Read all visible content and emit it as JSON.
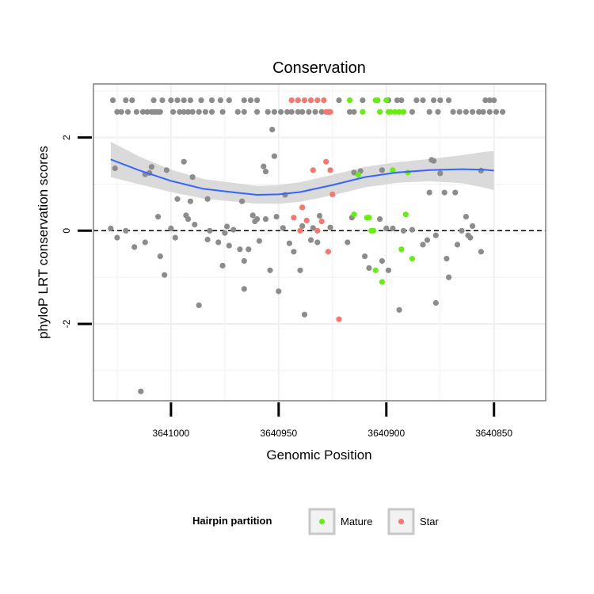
{
  "chart_data": {
    "type": "scatter",
    "title": "Conservation",
    "xlabel": "Genomic Position",
    "ylabel": "phyloP LRT conservation scores",
    "x_reversed": true,
    "xlim": [
      3641036,
      3640826
    ],
    "ylim": [
      -3.65,
      3.15
    ],
    "x_ticks": [
      3641000,
      3640950,
      3640900,
      3640850
    ],
    "x_tick_labels": [
      "3641000",
      "3640950",
      "3640900",
      "3640850"
    ],
    "y_ticks": [
      -2,
      0,
      2
    ],
    "y_tick_labels": [
      "-2",
      "0",
      "2"
    ],
    "grid": true,
    "reference_line": {
      "y": 0,
      "style": "dashed"
    },
    "colors": {
      "background": "#ffffff",
      "grid": "#f0f0f0",
      "other": "#8c8c8c",
      "mature": "#66ee11",
      "star": "#f8766d",
      "smooth_line": "#3366ff",
      "smooth_band": "#d3d3d3"
    },
    "legend": {
      "title": "Hairpin partition",
      "position": "bottom",
      "entries": [
        {
          "key": "mature",
          "label": "Mature"
        },
        {
          "key": "star",
          "label": "Star"
        }
      ]
    },
    "series": [
      {
        "key": "other",
        "points": [
          [
            3641027,
            2.8
          ],
          [
            3641021,
            2.8
          ],
          [
            3641018,
            2.8
          ],
          [
            3641008,
            2.8
          ],
          [
            3641004,
            2.8
          ],
          [
            3641000,
            2.8
          ],
          [
            3640997,
            2.8
          ],
          [
            3640994,
            2.8
          ],
          [
            3640991,
            2.8
          ],
          [
            3640986,
            2.8
          ],
          [
            3640981,
            2.8
          ],
          [
            3640977,
            2.8
          ],
          [
            3640973,
            2.8
          ],
          [
            3640966,
            2.8
          ],
          [
            3640963,
            2.8
          ],
          [
            3640960,
            2.8
          ],
          [
            3640922,
            2.8
          ],
          [
            3640911,
            2.8
          ],
          [
            3640899,
            2.8
          ],
          [
            3640895,
            2.8
          ],
          [
            3640893,
            2.8
          ],
          [
            3640886,
            2.8
          ],
          [
            3640883,
            2.8
          ],
          [
            3640878,
            2.8
          ],
          [
            3640875,
            2.8
          ],
          [
            3640871,
            2.8
          ],
          [
            3640854,
            2.8
          ],
          [
            3640852,
            2.8
          ],
          [
            3640850,
            2.8
          ],
          [
            3641025,
            2.55
          ],
          [
            3641023,
            2.55
          ],
          [
            3641020,
            2.55
          ],
          [
            3641016,
            2.55
          ],
          [
            3641013,
            2.55
          ],
          [
            3641011,
            2.55
          ],
          [
            3641009,
            2.55
          ],
          [
            3641008,
            2.55
          ],
          [
            3641007,
            2.55
          ],
          [
            3641006,
            2.55
          ],
          [
            3641005,
            2.55
          ],
          [
            3640999,
            2.55
          ],
          [
            3640996,
            2.55
          ],
          [
            3640994,
            2.55
          ],
          [
            3640992,
            2.55
          ],
          [
            3640990,
            2.55
          ],
          [
            3640987,
            2.55
          ],
          [
            3640984,
            2.55
          ],
          [
            3640981,
            2.55
          ],
          [
            3640976,
            2.55
          ],
          [
            3640969,
            2.55
          ],
          [
            3640966,
            2.55
          ],
          [
            3640960,
            2.55
          ],
          [
            3640955,
            2.55
          ],
          [
            3640952,
            2.55
          ],
          [
            3640949,
            2.55
          ],
          [
            3640946,
            2.55
          ],
          [
            3640944,
            2.55
          ],
          [
            3640941,
            2.55
          ],
          [
            3640939,
            2.55
          ],
          [
            3640936,
            2.55
          ],
          [
            3640933,
            2.55
          ],
          [
            3640930,
            2.55
          ],
          [
            3640927,
            2.55
          ],
          [
            3640917,
            2.55
          ],
          [
            3640915,
            2.55
          ],
          [
            3640888,
            2.55
          ],
          [
            3640880,
            2.55
          ],
          [
            3640876,
            2.55
          ],
          [
            3640869,
            2.55
          ],
          [
            3640866,
            2.55
          ],
          [
            3640863,
            2.55
          ],
          [
            3640860,
            2.55
          ],
          [
            3640857,
            2.55
          ],
          [
            3640855,
            2.55
          ],
          [
            3640852,
            2.55
          ],
          [
            3640849,
            2.55
          ],
          [
            3640846,
            2.55
          ],
          [
            3641026,
            1.34
          ],
          [
            3641012,
            1.21
          ],
          [
            3641010,
            1.24
          ],
          [
            3641009,
            1.37
          ],
          [
            3641002,
            1.3
          ],
          [
            3640997,
            0.68
          ],
          [
            3640994,
            1.48
          ],
          [
            3640990,
            1.15
          ],
          [
            3640991,
            0.63
          ],
          [
            3640983,
            0.68
          ],
          [
            3640967,
            0.63
          ],
          [
            3640956,
            1.27
          ],
          [
            3640953,
            2.17
          ],
          [
            3640952,
            1.6
          ],
          [
            3640957,
            1.38
          ],
          [
            3640947,
            0.77
          ],
          [
            3640939,
            0.1
          ],
          [
            3640931,
            0.32
          ],
          [
            3640915,
            1.25
          ],
          [
            3640912,
            1.28
          ],
          [
            3640902,
            1.3
          ],
          [
            3640879,
            1.52
          ],
          [
            3640878,
            1.5
          ],
          [
            3640875,
            1.23
          ],
          [
            3640873,
            0.82
          ],
          [
            3640868,
            0.82
          ],
          [
            3640856,
            1.29
          ],
          [
            3641028,
            0.05
          ],
          [
            3641025,
            -0.15
          ],
          [
            3641021,
            0.0
          ],
          [
            3641017,
            -0.35
          ],
          [
            3641012,
            -0.25
          ],
          [
            3641006,
            0.3
          ],
          [
            3641005,
            -0.55
          ],
          [
            3641003,
            -0.95
          ],
          [
            3641000,
            0.05
          ],
          [
            3640998,
            -0.15
          ],
          [
            3640993,
            0.33
          ],
          [
            3640992,
            0.25
          ],
          [
            3640989,
            0.13
          ],
          [
            3640987,
            -1.6
          ],
          [
            3640983,
            -0.19
          ],
          [
            3640982,
            0.0
          ],
          [
            3640978,
            -0.25
          ],
          [
            3640976,
            -0.75
          ],
          [
            3640975,
            -0.05
          ],
          [
            3640974,
            0.09
          ],
          [
            3640973,
            -0.32
          ],
          [
            3640971,
            0.02
          ],
          [
            3640968,
            -0.4
          ],
          [
            3640966,
            -0.65
          ],
          [
            3640966,
            -1.25
          ],
          [
            3640964,
            -0.4
          ],
          [
            3640962,
            0.33
          ],
          [
            3640961,
            0.2
          ],
          [
            3640960,
            0.25
          ],
          [
            3640959,
            -0.22
          ],
          [
            3640956,
            0.25
          ],
          [
            3640954,
            -0.85
          ],
          [
            3640951,
            0.3
          ],
          [
            3640950,
            -1.3
          ],
          [
            3640948,
            0.06
          ],
          [
            3640945,
            -0.27
          ],
          [
            3640943,
            -0.45
          ],
          [
            3640940,
            -0.85
          ],
          [
            3640938,
            -1.8
          ],
          [
            3640935,
            -0.2
          ],
          [
            3640934,
            0.06
          ],
          [
            3640932,
            -0.25
          ],
          [
            3640926,
            0.07
          ],
          [
            3640918,
            -0.25
          ],
          [
            3640916,
            0.28
          ],
          [
            3640910,
            -0.55
          ],
          [
            3640908,
            -0.8
          ],
          [
            3640903,
            0.25
          ],
          [
            3640902,
            -0.65
          ],
          [
            3640900,
            0.05
          ],
          [
            3640899,
            -0.85
          ],
          [
            3640897,
            0.05
          ],
          [
            3640894,
            -1.7
          ],
          [
            3640892,
            0.0
          ],
          [
            3640888,
            0.02
          ],
          [
            3640883,
            -0.3
          ],
          [
            3640881,
            -0.2
          ],
          [
            3640880,
            0.82
          ],
          [
            3640877,
            -1.55
          ],
          [
            3640872,
            -0.6
          ],
          [
            3640871,
            -1.0
          ],
          [
            3640867,
            -0.3
          ],
          [
            3640865,
            0.0
          ],
          [
            3640863,
            0.3
          ],
          [
            3640862,
            -0.1
          ],
          [
            3640861,
            -0.15
          ],
          [
            3640860,
            0.1
          ],
          [
            3640856,
            -0.45
          ],
          [
            3640877,
            -0.1
          ],
          [
            3641014,
            -3.45
          ]
        ]
      },
      {
        "key": "mature",
        "points": [
          [
            3640917,
            2.8
          ],
          [
            3640911,
            2.55
          ],
          [
            3640905,
            2.8
          ],
          [
            3640904,
            2.8
          ],
          [
            3640903,
            2.55
          ],
          [
            3640900,
            2.8
          ],
          [
            3640899,
            2.55
          ],
          [
            3640898,
            2.55
          ],
          [
            3640896,
            2.55
          ],
          [
            3640894,
            2.55
          ],
          [
            3640892,
            2.55
          ],
          [
            3640915,
            0.35
          ],
          [
            3640913,
            1.2
          ],
          [
            3640909,
            0.28
          ],
          [
            3640908,
            0.28
          ],
          [
            3640907,
            0.0
          ],
          [
            3640906,
            0.0
          ],
          [
            3640905,
            -0.85
          ],
          [
            3640902,
            -1.1
          ],
          [
            3640897,
            1.3
          ],
          [
            3640893,
            -0.4
          ],
          [
            3640891,
            0.35
          ],
          [
            3640890,
            1.25
          ],
          [
            3640888,
            -0.6
          ]
        ]
      },
      {
        "key": "star",
        "points": [
          [
            3640944,
            2.8
          ],
          [
            3640941,
            2.8
          ],
          [
            3640938,
            2.8
          ],
          [
            3640935,
            2.8
          ],
          [
            3640932,
            2.8
          ],
          [
            3640929,
            2.8
          ],
          [
            3640928,
            2.55
          ],
          [
            3640927,
            2.55
          ],
          [
            3640926,
            2.55
          ],
          [
            3640934,
            1.3
          ],
          [
            3640928,
            1.48
          ],
          [
            3640926,
            1.3
          ],
          [
            3640925,
            0.78
          ],
          [
            3640943,
            0.28
          ],
          [
            3640940,
            0.0
          ],
          [
            3640939,
            0.5
          ],
          [
            3640937,
            0.22
          ],
          [
            3640932,
            0.0
          ],
          [
            3640930,
            0.2
          ],
          [
            3640927,
            -0.45
          ],
          [
            3640922,
            -1.9
          ]
        ]
      }
    ],
    "smooth": {
      "x": [
        3641028,
        3641015,
        3641000,
        3640985,
        3640970,
        3640960,
        3640950,
        3640940,
        3640925,
        3640910,
        3640895,
        3640880,
        3640865,
        3640855,
        3640850
      ],
      "y": [
        1.53,
        1.3,
        1.07,
        0.9,
        0.82,
        0.77,
        0.78,
        0.83,
        0.98,
        1.15,
        1.25,
        1.3,
        1.32,
        1.31,
        1.29
      ],
      "band_half_width": [
        0.38,
        0.3,
        0.24,
        0.21,
        0.2,
        0.19,
        0.2,
        0.21,
        0.22,
        0.22,
        0.22,
        0.24,
        0.3,
        0.38,
        0.42
      ]
    }
  }
}
